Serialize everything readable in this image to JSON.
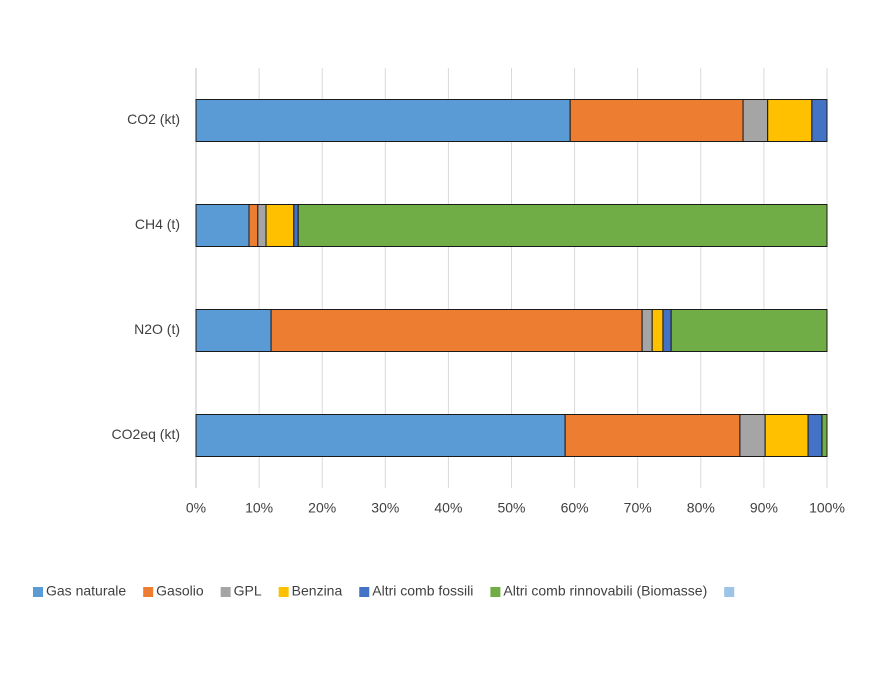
{
  "chart_data": {
    "type": "stacked-bar-horizontal",
    "categories": [
      "CO2 (kt)",
      "CH4 (t)",
      "N2O (t)",
      "CO2eq (kt)"
    ],
    "series": [
      {
        "name": "Gas naturale",
        "color": "#5b9bd5",
        "values": [
          59.3,
          8.4,
          11.9,
          58.5
        ]
      },
      {
        "name": "Gasolio",
        "color": "#ed7d31",
        "values": [
          27.4,
          1.4,
          58.8,
          27.7
        ]
      },
      {
        "name": "GPL",
        "color": "#a5a5a5",
        "values": [
          3.9,
          1.3,
          1.6,
          4.0
        ]
      },
      {
        "name": "Benzina",
        "color": "#ffc000",
        "values": [
          7.0,
          4.4,
          1.7,
          6.8
        ]
      },
      {
        "name": "Altri comb fossili",
        "color": "#4472c4",
        "values": [
          2.4,
          0.7,
          1.3,
          2.2
        ]
      },
      {
        "name": "Altri comb rinnovabili (Biomasse)",
        "color": "#70ad47",
        "values": [
          0,
          83.8,
          24.7,
          0.8
        ]
      },
      {
        "name": null,
        "color": "#9dc3e6",
        "values": [
          0,
          0,
          0,
          0
        ]
      }
    ],
    "xlim": [
      0,
      100
    ],
    "xticks": [
      {
        "value": 0,
        "label": "0%"
      },
      {
        "value": 10,
        "label": "10%"
      },
      {
        "value": 20,
        "label": "20%"
      },
      {
        "value": 30,
        "label": "30%"
      },
      {
        "value": 40,
        "label": "40%"
      },
      {
        "value": 50,
        "label": "50%"
      },
      {
        "value": 60,
        "label": "60%"
      },
      {
        "value": 70,
        "label": "70%"
      },
      {
        "value": 80,
        "label": "80%"
      },
      {
        "value": 90,
        "label": "90%"
      },
      {
        "value": 100,
        "label": "100%"
      }
    ],
    "grid": true,
    "legend": "bottom"
  }
}
